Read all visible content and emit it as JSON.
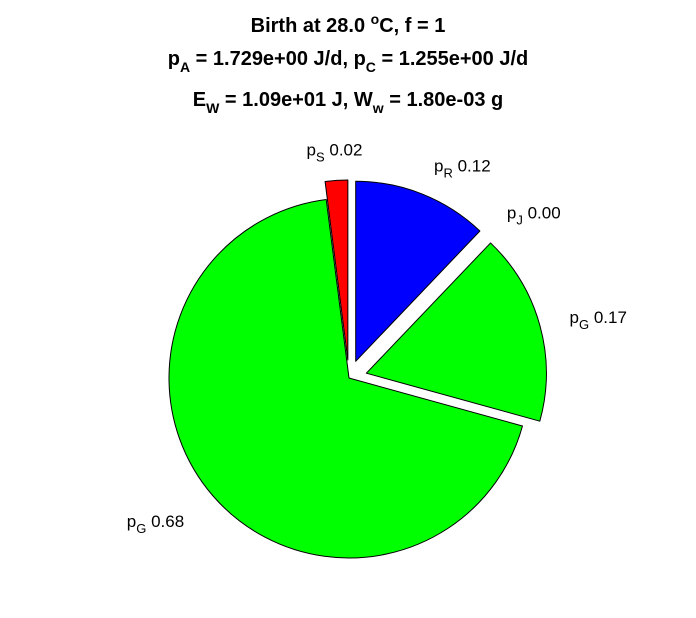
{
  "chart_data": {
    "type": "pie",
    "title": {
      "line1": {
        "text": "Birth at 28.0 ",
        "sup": "o",
        "rest": "C, f = 1"
      },
      "line2": {
        "a_base": "p",
        "a_sub": "A",
        "a_rest": " = 1.729e+00 J/d, ",
        "c_base": "p",
        "c_sub": "C",
        "c_rest": " = 1.255e+00 J/d"
      },
      "line3": {
        "e_base": "E",
        "e_sub": "W",
        "e_rest": " = 1.09e+01 J, ",
        "w_base": "W",
        "w_sub": "w",
        "w_rest": " = 1.80e-03 g"
      }
    },
    "slices": [
      {
        "base": "p",
        "sub": "R",
        "value": 0.12,
        "label": "0.12",
        "color": "#0000ff",
        "exploded": true
      },
      {
        "base": "p",
        "sub": "J",
        "value": 0.0,
        "label": "0.00",
        "color": "#ff00ff",
        "exploded": true
      },
      {
        "base": "p",
        "sub": "G",
        "value": 0.17,
        "label": "0.17",
        "color": "#00ff00",
        "exploded": true
      },
      {
        "base": "p",
        "sub": "G",
        "value": 0.68,
        "label": "0.68",
        "color": "#00ff00",
        "exploded": false
      },
      {
        "base": "p",
        "sub": "S",
        "value": 0.02,
        "label": "0.02",
        "color": "#ff0000",
        "exploded": true
      }
    ],
    "legend": "none"
  }
}
